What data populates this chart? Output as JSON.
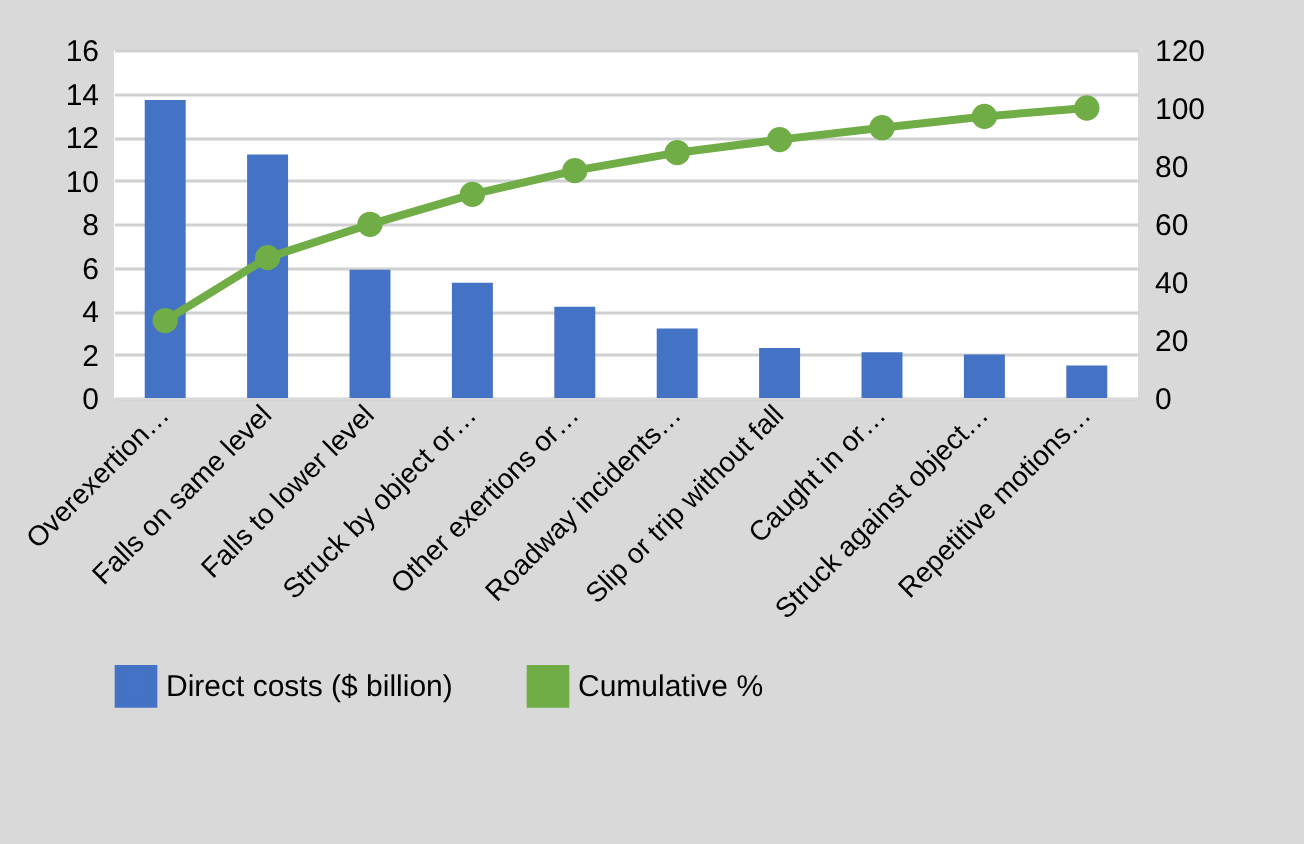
{
  "chart_data": {
    "type": "bar",
    "categories": [
      "Overexertion…",
      "Falls on same level",
      "Falls to lower level",
      "Struck by object or…",
      "Other exertions or…",
      "Roadway incidents…",
      "Slip or trip without fall",
      "Caught in or…",
      "Struck against object…",
      "Repetitive motions…"
    ],
    "series": [
      {
        "name": "Direct costs ($ billion)",
        "color": "#4472c4",
        "values": [
          13.7,
          11.2,
          5.9,
          5.3,
          4.2,
          3.2,
          2.3,
          2.1,
          2.0,
          1.5
        ]
      },
      {
        "name": "Cumulative %",
        "type": "line",
        "axis": "y2",
        "color": "#70ad47",
        "marker": "circle",
        "values": [
          26.7,
          48.4,
          59.9,
          70.2,
          78.4,
          84.6,
          89.1,
          93.2,
          97.1,
          100
        ]
      }
    ],
    "ylim": [
      0,
      16
    ],
    "yticks": [
      0,
      2,
      4,
      6,
      8,
      10,
      12,
      14,
      16
    ],
    "y2lim": [
      0,
      120
    ],
    "y2ticks": [
      0,
      20,
      40,
      60,
      80,
      100,
      120
    ],
    "grid": "y",
    "legend": "bottom"
  }
}
